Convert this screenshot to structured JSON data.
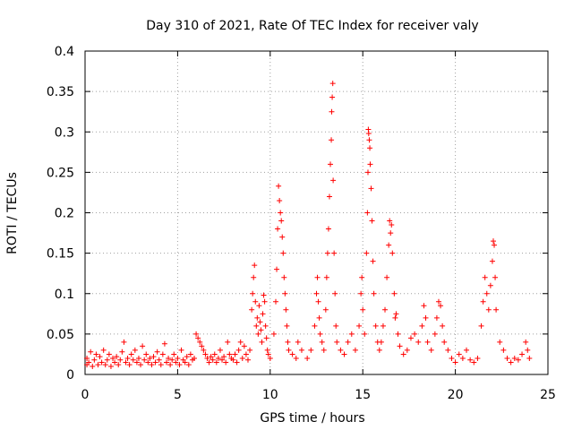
{
  "chart_data": {
    "type": "scatter",
    "title": "Day 310 of 2021, Rate Of TEC Index for receiver valy",
    "xlabel": "GPS time / hours",
    "ylabel": "ROTI / TECUs",
    "xlim": [
      0,
      25
    ],
    "ylim": [
      0,
      0.4
    ],
    "x_ticks": [
      0,
      5,
      10,
      15,
      20,
      25
    ],
    "x_tick_labels": [
      "0",
      "5",
      "10",
      "15",
      "20",
      "25"
    ],
    "y_ticks": [
      0,
      0.05,
      0.1,
      0.15,
      0.2,
      0.25,
      0.3,
      0.35,
      0.4
    ],
    "y_tick_labels": [
      "0",
      "0.05",
      "0.1",
      "0.15",
      "0.2",
      "0.25",
      "0.3",
      "0.35",
      "0.4"
    ],
    "grid": true,
    "marker": "+",
    "color": "#ff0000",
    "series": [
      {
        "name": "ROTI",
        "points": [
          [
            0.1,
            0.012
          ],
          [
            0.1,
            0.02
          ],
          [
            0.2,
            0.015
          ],
          [
            0.3,
            0.028
          ],
          [
            0.4,
            0.01
          ],
          [
            0.5,
            0.018
          ],
          [
            0.6,
            0.025
          ],
          [
            0.7,
            0.012
          ],
          [
            0.8,
            0.022
          ],
          [
            0.9,
            0.015
          ],
          [
            1.0,
            0.03
          ],
          [
            1.1,
            0.012
          ],
          [
            1.2,
            0.018
          ],
          [
            1.3,
            0.025
          ],
          [
            1.4,
            0.01
          ],
          [
            1.5,
            0.02
          ],
          [
            1.6,
            0.015
          ],
          [
            1.7,
            0.022
          ],
          [
            1.8,
            0.012
          ],
          [
            1.9,
            0.018
          ],
          [
            2.0,
            0.028
          ],
          [
            2.1,
            0.04
          ],
          [
            2.2,
            0.015
          ],
          [
            2.3,
            0.02
          ],
          [
            2.4,
            0.012
          ],
          [
            2.5,
            0.025
          ],
          [
            2.6,
            0.018
          ],
          [
            2.7,
            0.03
          ],
          [
            2.8,
            0.015
          ],
          [
            2.9,
            0.02
          ],
          [
            3.0,
            0.012
          ],
          [
            3.1,
            0.035
          ],
          [
            3.2,
            0.018
          ],
          [
            3.3,
            0.025
          ],
          [
            3.4,
            0.015
          ],
          [
            3.5,
            0.02
          ],
          [
            3.6,
            0.012
          ],
          [
            3.7,
            0.022
          ],
          [
            3.8,
            0.015
          ],
          [
            3.9,
            0.028
          ],
          [
            4.0,
            0.018
          ],
          [
            4.1,
            0.012
          ],
          [
            4.2,
            0.025
          ],
          [
            4.3,
            0.038
          ],
          [
            4.4,
            0.015
          ],
          [
            4.5,
            0.02
          ],
          [
            4.6,
            0.012
          ],
          [
            4.7,
            0.018
          ],
          [
            4.8,
            0.025
          ],
          [
            4.9,
            0.015
          ],
          [
            5.0,
            0.02
          ],
          [
            5.1,
            0.012
          ],
          [
            5.2,
            0.03
          ],
          [
            5.3,
            0.018
          ],
          [
            5.4,
            0.015
          ],
          [
            5.5,
            0.022
          ],
          [
            5.6,
            0.012
          ],
          [
            5.7,
            0.025
          ],
          [
            5.8,
            0.018
          ],
          [
            5.9,
            0.02
          ],
          [
            6.0,
            0.05
          ],
          [
            6.1,
            0.045
          ],
          [
            6.2,
            0.04
          ],
          [
            6.3,
            0.035
          ],
          [
            6.4,
            0.03
          ],
          [
            6.5,
            0.025
          ],
          [
            6.6,
            0.02
          ],
          [
            6.7,
            0.015
          ],
          [
            6.8,
            0.022
          ],
          [
            6.9,
            0.018
          ],
          [
            7.0,
            0.025
          ],
          [
            7.1,
            0.015
          ],
          [
            7.2,
            0.02
          ],
          [
            7.3,
            0.03
          ],
          [
            7.4,
            0.018
          ],
          [
            7.5,
            0.022
          ],
          [
            7.6,
            0.015
          ],
          [
            7.7,
            0.04
          ],
          [
            7.8,
            0.025
          ],
          [
            7.9,
            0.02
          ],
          [
            8.0,
            0.018
          ],
          [
            8.1,
            0.025
          ],
          [
            8.2,
            0.015
          ],
          [
            8.3,
            0.03
          ],
          [
            8.4,
            0.04
          ],
          [
            8.5,
            0.02
          ],
          [
            8.6,
            0.035
          ],
          [
            8.7,
            0.025
          ],
          [
            8.8,
            0.018
          ],
          [
            8.9,
            0.03
          ],
          [
            9.0,
            0.08
          ],
          [
            9.05,
            0.1
          ],
          [
            9.1,
            0.12
          ],
          [
            9.15,
            0.135
          ],
          [
            9.2,
            0.09
          ],
          [
            9.25,
            0.06
          ],
          [
            9.3,
            0.07
          ],
          [
            9.35,
            0.05
          ],
          [
            9.4,
            0.085
          ],
          [
            9.45,
            0.065
          ],
          [
            9.5,
            0.055
          ],
          [
            9.55,
            0.04
          ],
          [
            9.6,
            0.075
          ],
          [
            9.65,
            0.098
          ],
          [
            9.7,
            0.09
          ],
          [
            9.75,
            0.06
          ],
          [
            9.8,
            0.045
          ],
          [
            9.85,
            0.03
          ],
          [
            9.9,
            0.025
          ],
          [
            10.0,
            0.02
          ],
          [
            10.2,
            0.05
          ],
          [
            10.3,
            0.09
          ],
          [
            10.35,
            0.13
          ],
          [
            10.4,
            0.18
          ],
          [
            10.45,
            0.233
          ],
          [
            10.5,
            0.215
          ],
          [
            10.55,
            0.2
          ],
          [
            10.6,
            0.19
          ],
          [
            10.65,
            0.17
          ],
          [
            10.7,
            0.15
          ],
          [
            10.75,
            0.12
          ],
          [
            10.8,
            0.1
          ],
          [
            10.85,
            0.08
          ],
          [
            10.9,
            0.06
          ],
          [
            10.95,
            0.04
          ],
          [
            11.0,
            0.03
          ],
          [
            11.2,
            0.025
          ],
          [
            11.4,
            0.02
          ],
          [
            11.5,
            0.04
          ],
          [
            11.7,
            0.03
          ],
          [
            12.0,
            0.02
          ],
          [
            12.2,
            0.03
          ],
          [
            12.4,
            0.06
          ],
          [
            12.5,
            0.1
          ],
          [
            12.55,
            0.12
          ],
          [
            12.6,
            0.09
          ],
          [
            12.65,
            0.07
          ],
          [
            12.7,
            0.05
          ],
          [
            12.8,
            0.04
          ],
          [
            12.9,
            0.03
          ],
          [
            13.0,
            0.08
          ],
          [
            13.05,
            0.12
          ],
          [
            13.1,
            0.15
          ],
          [
            13.15,
            0.18
          ],
          [
            13.2,
            0.22
          ],
          [
            13.25,
            0.26
          ],
          [
            13.3,
            0.29
          ],
          [
            13.32,
            0.325
          ],
          [
            13.35,
            0.343
          ],
          [
            13.38,
            0.36
          ],
          [
            13.4,
            0.24
          ],
          [
            13.45,
            0.15
          ],
          [
            13.5,
            0.1
          ],
          [
            13.55,
            0.06
          ],
          [
            13.6,
            0.04
          ],
          [
            13.8,
            0.03
          ],
          [
            14.0,
            0.025
          ],
          [
            14.2,
            0.04
          ],
          [
            14.4,
            0.05
          ],
          [
            14.6,
            0.03
          ],
          [
            14.8,
            0.06
          ],
          [
            14.9,
            0.1
          ],
          [
            14.95,
            0.12
          ],
          [
            15.0,
            0.08
          ],
          [
            15.1,
            0.05
          ],
          [
            15.2,
            0.15
          ],
          [
            15.25,
            0.2
          ],
          [
            15.28,
            0.25
          ],
          [
            15.3,
            0.303
          ],
          [
            15.32,
            0.298
          ],
          [
            15.35,
            0.29
          ],
          [
            15.38,
            0.28
          ],
          [
            15.4,
            0.26
          ],
          [
            15.45,
            0.23
          ],
          [
            15.5,
            0.19
          ],
          [
            15.55,
            0.14
          ],
          [
            15.6,
            0.1
          ],
          [
            15.7,
            0.06
          ],
          [
            15.8,
            0.04
          ],
          [
            15.9,
            0.03
          ],
          [
            16.0,
            0.04
          ],
          [
            16.1,
            0.06
          ],
          [
            16.2,
            0.08
          ],
          [
            16.3,
            0.12
          ],
          [
            16.4,
            0.16
          ],
          [
            16.45,
            0.19
          ],
          [
            16.5,
            0.175
          ],
          [
            16.55,
            0.185
          ],
          [
            16.6,
            0.15
          ],
          [
            16.7,
            0.1
          ],
          [
            16.75,
            0.07
          ],
          [
            16.8,
            0.075
          ],
          [
            16.9,
            0.05
          ],
          [
            17.0,
            0.035
          ],
          [
            17.2,
            0.025
          ],
          [
            17.4,
            0.03
          ],
          [
            17.6,
            0.045
          ],
          [
            17.8,
            0.05
          ],
          [
            18.0,
            0.04
          ],
          [
            18.2,
            0.06
          ],
          [
            18.3,
            0.085
          ],
          [
            18.4,
            0.07
          ],
          [
            18.5,
            0.04
          ],
          [
            18.7,
            0.03
          ],
          [
            18.9,
            0.05
          ],
          [
            19.0,
            0.07
          ],
          [
            19.1,
            0.09
          ],
          [
            19.2,
            0.085
          ],
          [
            19.3,
            0.06
          ],
          [
            19.4,
            0.04
          ],
          [
            19.6,
            0.03
          ],
          [
            19.8,
            0.02
          ],
          [
            20.0,
            0.015
          ],
          [
            20.2,
            0.025
          ],
          [
            20.4,
            0.02
          ],
          [
            20.6,
            0.03
          ],
          [
            20.8,
            0.018
          ],
          [
            21.0,
            0.015
          ],
          [
            21.2,
            0.02
          ],
          [
            21.4,
            0.06
          ],
          [
            21.5,
            0.09
          ],
          [
            21.6,
            0.12
          ],
          [
            21.7,
            0.1
          ],
          [
            21.8,
            0.08
          ],
          [
            21.9,
            0.11
          ],
          [
            22.0,
            0.14
          ],
          [
            22.05,
            0.165
          ],
          [
            22.1,
            0.16
          ],
          [
            22.15,
            0.12
          ],
          [
            22.2,
            0.08
          ],
          [
            22.4,
            0.04
          ],
          [
            22.6,
            0.03
          ],
          [
            22.8,
            0.02
          ],
          [
            23.0,
            0.015
          ],
          [
            23.2,
            0.02
          ],
          [
            23.4,
            0.018
          ],
          [
            23.6,
            0.025
          ],
          [
            23.8,
            0.04
          ],
          [
            23.9,
            0.03
          ],
          [
            24.0,
            0.02
          ]
        ]
      }
    ]
  }
}
